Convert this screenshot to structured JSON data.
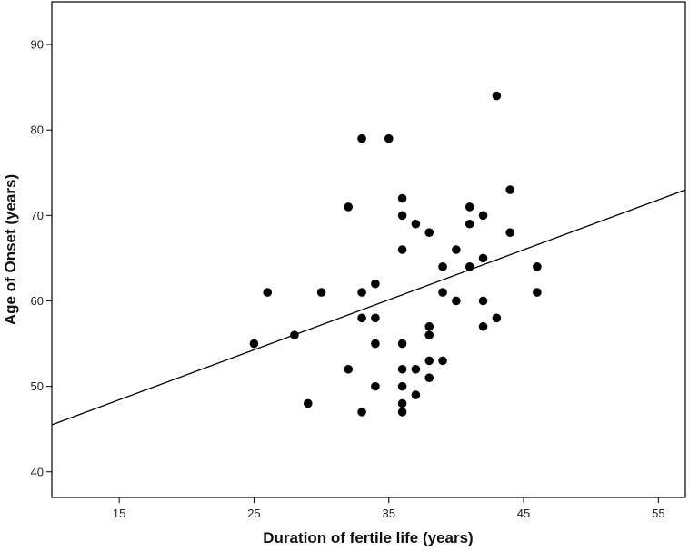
{
  "chart_data": {
    "type": "scatter",
    "title": "",
    "xlabel": "Duration of fertile life (years)",
    "ylabel": "Age of Onset (years)",
    "xlim": [
      10,
      57
    ],
    "ylim": [
      37,
      95
    ],
    "xticks": [
      15,
      25,
      35,
      45,
      55
    ],
    "yticks": [
      40,
      50,
      60,
      70,
      80,
      90
    ],
    "grid": false,
    "legend": "none",
    "marker_color": "#000000",
    "line_color": "#000000",
    "fit_line": {
      "x": [
        10,
        57
      ],
      "y": [
        45.5,
        73.0
      ]
    },
    "points": [
      {
        "x": 25,
        "y": 55
      },
      {
        "x": 26,
        "y": 61
      },
      {
        "x": 28,
        "y": 56
      },
      {
        "x": 29,
        "y": 48
      },
      {
        "x": 30,
        "y": 61
      },
      {
        "x": 32,
        "y": 71
      },
      {
        "x": 32,
        "y": 52
      },
      {
        "x": 33,
        "y": 79
      },
      {
        "x": 33,
        "y": 61
      },
      {
        "x": 33,
        "y": 58
      },
      {
        "x": 33,
        "y": 47
      },
      {
        "x": 34,
        "y": 62
      },
      {
        "x": 34,
        "y": 58
      },
      {
        "x": 34,
        "y": 55
      },
      {
        "x": 34,
        "y": 50
      },
      {
        "x": 35,
        "y": 79
      },
      {
        "x": 36,
        "y": 72
      },
      {
        "x": 36,
        "y": 70
      },
      {
        "x": 36,
        "y": 66
      },
      {
        "x": 36,
        "y": 55
      },
      {
        "x": 36,
        "y": 52
      },
      {
        "x": 36,
        "y": 50
      },
      {
        "x": 36,
        "y": 48
      },
      {
        "x": 36,
        "y": 47
      },
      {
        "x": 37,
        "y": 69
      },
      {
        "x": 37,
        "y": 52
      },
      {
        "x": 37,
        "y": 49
      },
      {
        "x": 38,
        "y": 68
      },
      {
        "x": 38,
        "y": 57
      },
      {
        "x": 38,
        "y": 56
      },
      {
        "x": 38,
        "y": 53
      },
      {
        "x": 38,
        "y": 51
      },
      {
        "x": 39,
        "y": 64
      },
      {
        "x": 39,
        "y": 61
      },
      {
        "x": 39,
        "y": 53
      },
      {
        "x": 40,
        "y": 66
      },
      {
        "x": 40,
        "y": 60
      },
      {
        "x": 41,
        "y": 71
      },
      {
        "x": 41,
        "y": 69
      },
      {
        "x": 41,
        "y": 64
      },
      {
        "x": 42,
        "y": 70
      },
      {
        "x": 42,
        "y": 65
      },
      {
        "x": 42,
        "y": 60
      },
      {
        "x": 42,
        "y": 57
      },
      {
        "x": 43,
        "y": 84
      },
      {
        "x": 43,
        "y": 58
      },
      {
        "x": 44,
        "y": 73
      },
      {
        "x": 44,
        "y": 68
      },
      {
        "x": 46,
        "y": 64
      },
      {
        "x": 46,
        "y": 61
      }
    ]
  }
}
